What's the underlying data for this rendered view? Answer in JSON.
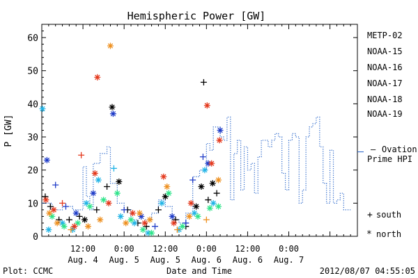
{
  "chart_data": {
    "type": "scatter",
    "title": "Hemispheric Power [GW]",
    "xlabel": "Date and Time",
    "ylabel": "P [GW]",
    "ylim": [
      0,
      64
    ],
    "xlim_hours": [
      0,
      92
    ],
    "yticks": [
      0,
      10,
      20,
      30,
      40,
      50,
      60
    ],
    "grid": false,
    "legend_placement": "right",
    "xticks": [
      {
        "hour": 12,
        "time": "12:00",
        "date": "Aug. 4"
      },
      {
        "hour": 24,
        "time": "0:00",
        "date": "Aug. 5"
      },
      {
        "hour": 36,
        "time": "12:00",
        "date": "Aug. 5"
      },
      {
        "hour": 48,
        "time": "0:00",
        "date": "Aug. 6"
      },
      {
        "hour": 60,
        "time": "12:00",
        "date": "Aug. 6"
      },
      {
        "hour": 72,
        "time": "0:00",
        "date": "Aug. 7"
      }
    ],
    "series": [
      {
        "name": "METP-02",
        "color": "#000000",
        "points": [
          {
            "x": 1,
            "y": 12,
            "m": "plus"
          },
          {
            "x": 2.5,
            "y": 9,
            "m": "plus"
          },
          {
            "x": 5,
            "y": 5,
            "m": "plus"
          },
          {
            "x": 8,
            "y": 5,
            "m": "plus"
          },
          {
            "x": 11,
            "y": 6,
            "m": "plus"
          },
          {
            "x": 12.5,
            "y": 5,
            "m": "star"
          },
          {
            "x": 16,
            "y": 8,
            "m": "plus"
          },
          {
            "x": 19,
            "y": 15,
            "m": "plus"
          },
          {
            "x": 20.5,
            "y": 39,
            "m": "star"
          },
          {
            "x": 22.5,
            "y": 16.5,
            "m": "star"
          },
          {
            "x": 25,
            "y": 8,
            "m": "plus"
          },
          {
            "x": 28,
            "y": 4,
            "m": "plus"
          },
          {
            "x": 30.5,
            "y": 3,
            "m": "plus"
          },
          {
            "x": 34,
            "y": 8,
            "m": "plus"
          },
          {
            "x": 36,
            "y": 12,
            "m": "star"
          },
          {
            "x": 39,
            "y": 5,
            "m": "plus"
          },
          {
            "x": 42,
            "y": 3,
            "m": "plus"
          },
          {
            "x": 45,
            "y": 9,
            "m": "star"
          },
          {
            "x": 46.5,
            "y": 15,
            "m": "star"
          },
          {
            "x": 47.2,
            "y": 46.5,
            "m": "plus"
          },
          {
            "x": 48.5,
            "y": 11,
            "m": "plus"
          },
          {
            "x": 49.8,
            "y": 16,
            "m": "star"
          },
          {
            "x": 51,
            "y": 13,
            "m": "plus"
          }
        ]
      },
      {
        "name": "NOAA-15",
        "color": "#1f3cc8",
        "points": [
          {
            "x": 1.5,
            "y": 23,
            "m": "star"
          },
          {
            "x": 4,
            "y": 15.5,
            "m": "plus"
          },
          {
            "x": 7,
            "y": 9,
            "m": "plus"
          },
          {
            "x": 10,
            "y": 7,
            "m": "star"
          },
          {
            "x": 15,
            "y": 13,
            "m": "star"
          },
          {
            "x": 20.8,
            "y": 37,
            "m": "star"
          },
          {
            "x": 24,
            "y": 8,
            "m": "plus"
          },
          {
            "x": 29,
            "y": 6,
            "m": "star"
          },
          {
            "x": 33,
            "y": 3,
            "m": "plus"
          },
          {
            "x": 38,
            "y": 6,
            "m": "star"
          },
          {
            "x": 42,
            "y": 4,
            "m": "plus"
          },
          {
            "x": 44,
            "y": 17,
            "m": "plus"
          },
          {
            "x": 47,
            "y": 24,
            "m": "plus"
          },
          {
            "x": 48.5,
            "y": 22,
            "m": "star"
          },
          {
            "x": 52,
            "y": 32,
            "m": "star"
          }
        ]
      },
      {
        "name": "NOAA-16",
        "color": "#22b4e6",
        "points": [
          {
            "x": 0.2,
            "y": 38.5,
            "m": "star"
          },
          {
            "x": 2,
            "y": 2,
            "m": "star"
          },
          {
            "x": 6,
            "y": 4,
            "m": "star"
          },
          {
            "x": 9,
            "y": 2,
            "m": "star"
          },
          {
            "x": 13,
            "y": 10,
            "m": "star"
          },
          {
            "x": 16.5,
            "y": 17,
            "m": "star"
          },
          {
            "x": 21,
            "y": 20.5,
            "m": "plus"
          },
          {
            "x": 23,
            "y": 6,
            "m": "star"
          },
          {
            "x": 27,
            "y": 4,
            "m": "star"
          },
          {
            "x": 31,
            "y": 1,
            "m": "star"
          },
          {
            "x": 35,
            "y": 10,
            "m": "star"
          },
          {
            "x": 40,
            "y": 2,
            "m": "star"
          },
          {
            "x": 44.5,
            "y": 7,
            "m": "star"
          },
          {
            "x": 47.5,
            "y": 20,
            "m": "star"
          },
          {
            "x": 50,
            "y": 10,
            "m": "star"
          }
        ]
      },
      {
        "name": "NOAA-17",
        "color": "#2ee48a",
        "points": [
          {
            "x": 3,
            "y": 6,
            "m": "star"
          },
          {
            "x": 6.5,
            "y": 3,
            "m": "star"
          },
          {
            "x": 10.5,
            "y": 4,
            "m": "star"
          },
          {
            "x": 14,
            "y": 9,
            "m": "star"
          },
          {
            "x": 18,
            "y": 11,
            "m": "star"
          },
          {
            "x": 22,
            "y": 13,
            "m": "star"
          },
          {
            "x": 26,
            "y": 5,
            "m": "star"
          },
          {
            "x": 29.5,
            "y": 2,
            "m": "star"
          },
          {
            "x": 32,
            "y": 1,
            "m": "star"
          },
          {
            "x": 37,
            "y": 13,
            "m": "star"
          },
          {
            "x": 41,
            "y": 3,
            "m": "star"
          },
          {
            "x": 45.5,
            "y": 6,
            "m": "star"
          },
          {
            "x": 49,
            "y": 8.5,
            "m": "star"
          },
          {
            "x": 51.5,
            "y": 9,
            "m": "star"
          }
        ]
      },
      {
        "name": "NOAA-18",
        "color": "#ee9020",
        "points": [
          {
            "x": 2.2,
            "y": 7,
            "m": "star"
          },
          {
            "x": 4.5,
            "y": 4,
            "m": "star"
          },
          {
            "x": 8.5,
            "y": 2,
            "m": "plus"
          },
          {
            "x": 13.5,
            "y": 3,
            "m": "star"
          },
          {
            "x": 17,
            "y": 5,
            "m": "star"
          },
          {
            "x": 20,
            "y": 57.5,
            "m": "star"
          },
          {
            "x": 24.5,
            "y": 4,
            "m": "star"
          },
          {
            "x": 28.5,
            "y": 7,
            "m": "star"
          },
          {
            "x": 31.5,
            "y": 5,
            "m": "star"
          },
          {
            "x": 36.5,
            "y": 15,
            "m": "star"
          },
          {
            "x": 39.5,
            "y": 2,
            "m": "plus"
          },
          {
            "x": 43,
            "y": 6,
            "m": "star"
          },
          {
            "x": 48,
            "y": 5,
            "m": "plus"
          },
          {
            "x": 51.5,
            "y": 17,
            "m": "star"
          }
        ]
      },
      {
        "name": "NOAA-19",
        "color": "#e4381c",
        "points": [
          {
            "x": 1.2,
            "y": 11,
            "m": "star"
          },
          {
            "x": 3.5,
            "y": 8,
            "m": "star"
          },
          {
            "x": 6,
            "y": 10,
            "m": "plus"
          },
          {
            "x": 9.5,
            "y": 3,
            "m": "star"
          },
          {
            "x": 11.5,
            "y": 24.5,
            "m": "plus"
          },
          {
            "x": 15.5,
            "y": 19,
            "m": "star"
          },
          {
            "x": 16.2,
            "y": 48,
            "m": "star"
          },
          {
            "x": 19.5,
            "y": 10,
            "m": "star"
          },
          {
            "x": 26.5,
            "y": 7,
            "m": "star"
          },
          {
            "x": 30,
            "y": 4,
            "m": "star"
          },
          {
            "x": 35.5,
            "y": 18,
            "m": "star"
          },
          {
            "x": 38.5,
            "y": 4,
            "m": "star"
          },
          {
            "x": 43.5,
            "y": 10,
            "m": "star"
          },
          {
            "x": 48.2,
            "y": 39.5,
            "m": "star"
          },
          {
            "x": 49.5,
            "y": 22,
            "m": "star"
          },
          {
            "x": 51.8,
            "y": 29,
            "m": "star"
          }
        ]
      }
    ],
    "ovation": {
      "name": "Ovation Prime HPI",
      "color": "#1f5fc8",
      "steps": [
        {
          "x": 0,
          "y": 10
        },
        {
          "x": 3,
          "y": 8
        },
        {
          "x": 6,
          "y": 9
        },
        {
          "x": 9,
          "y": 8
        },
        {
          "x": 12,
          "y": 21
        },
        {
          "x": 13,
          "y": 12
        },
        {
          "x": 14,
          "y": 8
        },
        {
          "x": 15,
          "y": 22
        },
        {
          "x": 17,
          "y": 25
        },
        {
          "x": 19,
          "y": 27
        },
        {
          "x": 20,
          "y": 16
        },
        {
          "x": 22,
          "y": 10
        },
        {
          "x": 24,
          "y": 8
        },
        {
          "x": 26,
          "y": 5
        },
        {
          "x": 28,
          "y": 4
        },
        {
          "x": 30,
          "y": 5
        },
        {
          "x": 32,
          "y": 7
        },
        {
          "x": 34,
          "y": 11
        },
        {
          "x": 36,
          "y": 9
        },
        {
          "x": 38,
          "y": 5
        },
        {
          "x": 40,
          "y": 4
        },
        {
          "x": 42,
          "y": 7
        },
        {
          "x": 44,
          "y": 18
        },
        {
          "x": 46,
          "y": 20
        },
        {
          "x": 48,
          "y": 28
        },
        {
          "x": 49,
          "y": 26
        },
        {
          "x": 50,
          "y": 33
        },
        {
          "x": 52,
          "y": 30
        },
        {
          "x": 53,
          "y": 29
        },
        {
          "x": 54,
          "y": 36
        },
        {
          "x": 55,
          "y": 11
        },
        {
          "x": 56,
          "y": 25
        },
        {
          "x": 57,
          "y": 29
        },
        {
          "x": 58,
          "y": 14
        },
        {
          "x": 59,
          "y": 27
        },
        {
          "x": 60,
          "y": 20
        },
        {
          "x": 61,
          "y": 22
        },
        {
          "x": 62,
          "y": 13
        },
        {
          "x": 63,
          "y": 24
        },
        {
          "x": 64,
          "y": 29
        },
        {
          "x": 66,
          "y": 27
        },
        {
          "x": 67,
          "y": 29
        },
        {
          "x": 68,
          "y": 31
        },
        {
          "x": 69,
          "y": 30
        },
        {
          "x": 70,
          "y": 19
        },
        {
          "x": 71,
          "y": 14
        },
        {
          "x": 72,
          "y": 29
        },
        {
          "x": 73,
          "y": 31
        },
        {
          "x": 74,
          "y": 30
        },
        {
          "x": 75,
          "y": 10
        },
        {
          "x": 76,
          "y": 14
        },
        {
          "x": 77,
          "y": 30
        },
        {
          "x": 78,
          "y": 33
        },
        {
          "x": 79,
          "y": 34
        },
        {
          "x": 80,
          "y": 36
        },
        {
          "x": 81,
          "y": 27
        },
        {
          "x": 82,
          "y": 16
        },
        {
          "x": 83,
          "y": 10
        },
        {
          "x": 84,
          "y": 26
        },
        {
          "x": 85,
          "y": 10
        },
        {
          "x": 86,
          "y": 11
        },
        {
          "x": 87,
          "y": 13
        },
        {
          "x": 88,
          "y": 8
        },
        {
          "x": 89,
          "y": 8
        }
      ]
    },
    "legend": {
      "entries": [
        "METP-02",
        "NOAA-15",
        "NOAA-16",
        "NOAA-17",
        "NOAA-18",
        "NOAA-19"
      ],
      "ovation_dash": "—",
      "ovation_line1": "Ovation",
      "ovation_line2": "Prime HPI",
      "south_symbol": "+",
      "south_label": "south",
      "north_symbol": "*",
      "north_label": "north"
    }
  },
  "footer": {
    "plot_credit": "Plot: CCMC",
    "timestamp": "2012/08/07 04:55:05"
  }
}
